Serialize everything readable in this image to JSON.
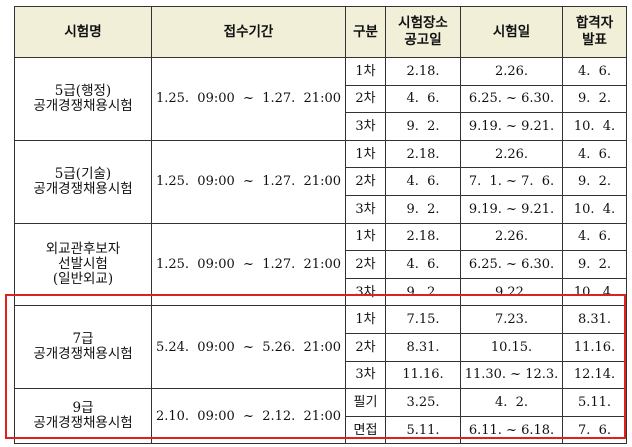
{
  "headers": {
    "name": "시험명",
    "application": "접수기간",
    "round": "구분",
    "venue_line1": "시험장소",
    "venue_line2": "공고일",
    "exam_date": "시험일",
    "result_line1": "합격자",
    "result_line2": "발표"
  },
  "exams": [
    {
      "name_lines": [
        "5급(행정)",
        "공개경쟁채용시험"
      ],
      "application": "1.25.  09:00  ~  1.27.  21:00",
      "rounds": [
        {
          "round": "1차",
          "venue": "2.18.",
          "exam": "2.26.",
          "result": "4.  6."
        },
        {
          "round": "2차",
          "venue": "4.  6.",
          "exam": "6.25. ~ 6.30.",
          "result": "9.  2."
        },
        {
          "round": "3차",
          "venue": "9.  2.",
          "exam": "9.19. ~ 9.21.",
          "result": "10.  4."
        }
      ]
    },
    {
      "name_lines": [
        "5급(기술)",
        "공개경쟁채용시험"
      ],
      "application": "1.25.  09:00  ~  1.27.  21:00",
      "rounds": [
        {
          "round": "1차",
          "venue": "2.18.",
          "exam": "2.26.",
          "result": "4.  6."
        },
        {
          "round": "2차",
          "venue": "4.  6.",
          "exam": "7.  1. ~ 7.  6.",
          "result": "9.  2."
        },
        {
          "round": "3차",
          "venue": "9.  2.",
          "exam": "9.19. ~ 9.21.",
          "result": "10.  4."
        }
      ]
    },
    {
      "name_lines": [
        "외교관후보자",
        "선발시험",
        "(일반외교)"
      ],
      "application": "1.25.  09:00  ~  1.27.  21:00",
      "rounds": [
        {
          "round": "1차",
          "venue": "2.18.",
          "exam": "2.26.",
          "result": "4.  6."
        },
        {
          "round": "2차",
          "venue": "4.  6.",
          "exam": "6.25. ~ 6.30.",
          "result": "9.  2."
        },
        {
          "round": "3차",
          "venue": "9.  2.",
          "exam": "9.22.",
          "result": "10.  4."
        }
      ]
    },
    {
      "name_lines": [
        "7급",
        "공개경쟁채용시험"
      ],
      "application": "5.24.  09:00  ~  5.26.  21:00",
      "rounds": [
        {
          "round": "1차",
          "venue": "7.15.",
          "exam": "7.23.",
          "result": "8.31."
        },
        {
          "round": "2차",
          "venue": "8.31.",
          "exam": "10.15.",
          "result": "11.16."
        },
        {
          "round": "3차",
          "venue": "11.16.",
          "exam": "11.30. ~ 12.3.",
          "result": "12.14."
        }
      ]
    },
    {
      "name_lines": [
        "9급",
        "공개경쟁채용시험"
      ],
      "application": "2.10.  09:00  ~  2.12.  21:00",
      "rounds": [
        {
          "round": "필기",
          "venue": "3.25.",
          "exam": "4.  2.",
          "result": "5.11."
        },
        {
          "round": "면접",
          "venue": "5.11.",
          "exam": "6.11. ~ 6.18.",
          "result": "7.  6."
        }
      ]
    }
  ],
  "highlight_color": "#e0201e",
  "header_bg": "#f2efd9"
}
